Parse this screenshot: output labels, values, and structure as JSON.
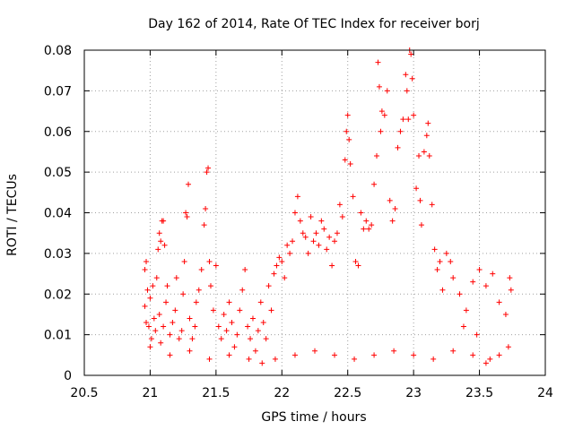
{
  "chart_data": {
    "type": "scatter",
    "title": "Day 162 of 2014, Rate Of TEC Index for receiver borj",
    "xlabel": "GPS time / hours",
    "ylabel": "ROTI / TECUs",
    "xlim": [
      20.5,
      24
    ],
    "ylim": [
      0,
      0.08
    ],
    "x_ticks": [
      20.5,
      21,
      21.5,
      22,
      22.5,
      23,
      23.5,
      24
    ],
    "y_ticks": [
      0,
      0.01,
      0.02,
      0.03,
      0.04,
      0.05,
      0.06,
      0.07,
      0.08
    ],
    "x_tick_labels": [
      "20.5",
      "21",
      "21.5",
      "22",
      "22.5",
      "23",
      "23.5",
      "24"
    ],
    "y_tick_labels": [
      "0",
      "0.01",
      "0.02",
      "0.03",
      "0.04",
      "0.05",
      "0.06",
      "0.07",
      "0.08"
    ],
    "grid": true,
    "marker": "+",
    "color": "#ff0000",
    "series": [
      {
        "name": "ROTI",
        "points": [
          [
            20.96,
            0.026
          ],
          [
            20.97,
            0.028
          ],
          [
            20.96,
            0.017
          ],
          [
            20.97,
            0.013
          ],
          [
            20.98,
            0.021
          ],
          [
            20.99,
            0.012
          ],
          [
            21.0,
            0.019
          ],
          [
            21.01,
            0.009
          ],
          [
            21.02,
            0.022
          ],
          [
            21.03,
            0.014
          ],
          [
            21.04,
            0.011
          ],
          [
            21.05,
            0.024
          ],
          [
            21.06,
            0.031
          ],
          [
            21.07,
            0.035
          ],
          [
            21.08,
            0.033
          ],
          [
            21.09,
            0.038
          ],
          [
            21.1,
            0.038
          ],
          [
            21.11,
            0.032
          ],
          [
            21.07,
            0.015
          ],
          [
            21.08,
            0.008
          ],
          [
            21.1,
            0.012
          ],
          [
            21.12,
            0.018
          ],
          [
            21.13,
            0.022
          ],
          [
            21.15,
            0.01
          ],
          [
            21.17,
            0.013
          ],
          [
            21.19,
            0.016
          ],
          [
            21.2,
            0.024
          ],
          [
            21.22,
            0.009
          ],
          [
            21.24,
            0.011
          ],
          [
            21.25,
            0.02
          ],
          [
            21.26,
            0.028
          ],
          [
            21.27,
            0.04
          ],
          [
            21.28,
            0.039
          ],
          [
            21.29,
            0.047
          ],
          [
            21.3,
            0.014
          ],
          [
            21.32,
            0.009
          ],
          [
            21.34,
            0.012
          ],
          [
            21.35,
            0.018
          ],
          [
            21.37,
            0.021
          ],
          [
            21.39,
            0.026
          ],
          [
            21.41,
            0.037
          ],
          [
            21.42,
            0.041
          ],
          [
            21.43,
            0.05
          ],
          [
            21.44,
            0.051
          ],
          [
            21.45,
            0.028
          ],
          [
            21.46,
            0.022
          ],
          [
            21.48,
            0.016
          ],
          [
            21.5,
            0.027
          ],
          [
            21.52,
            0.012
          ],
          [
            21.54,
            0.009
          ],
          [
            21.56,
            0.015
          ],
          [
            21.58,
            0.011
          ],
          [
            21.6,
            0.018
          ],
          [
            21.62,
            0.013
          ],
          [
            21.64,
            0.007
          ],
          [
            21.66,
            0.01
          ],
          [
            21.68,
            0.016
          ],
          [
            21.7,
            0.021
          ],
          [
            21.72,
            0.026
          ],
          [
            21.74,
            0.012
          ],
          [
            21.76,
            0.009
          ],
          [
            21.78,
            0.014
          ],
          [
            21.8,
            0.006
          ],
          [
            21.82,
            0.011
          ],
          [
            21.84,
            0.018
          ],
          [
            21.86,
            0.013
          ],
          [
            21.88,
            0.009
          ],
          [
            21.9,
            0.022
          ],
          [
            21.92,
            0.016
          ],
          [
            21.94,
            0.025
          ],
          [
            21.96,
            0.027
          ],
          [
            21.98,
            0.029
          ],
          [
            22.0,
            0.028
          ],
          [
            22.02,
            0.024
          ],
          [
            22.04,
            0.032
          ],
          [
            22.06,
            0.03
          ],
          [
            22.08,
            0.033
          ],
          [
            22.1,
            0.04
          ],
          [
            22.12,
            0.044
          ],
          [
            22.14,
            0.038
          ],
          [
            22.16,
            0.035
          ],
          [
            22.18,
            0.034
          ],
          [
            22.2,
            0.03
          ],
          [
            22.22,
            0.039
          ],
          [
            22.24,
            0.033
          ],
          [
            22.26,
            0.035
          ],
          [
            22.28,
            0.032
          ],
          [
            22.3,
            0.038
          ],
          [
            22.32,
            0.036
          ],
          [
            22.34,
            0.031
          ],
          [
            22.36,
            0.034
          ],
          [
            22.38,
            0.027
          ],
          [
            22.4,
            0.033
          ],
          [
            22.42,
            0.035
          ],
          [
            22.44,
            0.042
          ],
          [
            22.46,
            0.039
          ],
          [
            22.48,
            0.053
          ],
          [
            22.49,
            0.06
          ],
          [
            22.5,
            0.064
          ],
          [
            22.51,
            0.058
          ],
          [
            22.52,
            0.052
          ],
          [
            22.54,
            0.044
          ],
          [
            22.56,
            0.028
          ],
          [
            22.58,
            0.027
          ],
          [
            22.6,
            0.04
          ],
          [
            22.62,
            0.036
          ],
          [
            22.64,
            0.038
          ],
          [
            22.66,
            0.036
          ],
          [
            22.68,
            0.037
          ],
          [
            22.7,
            0.047
          ],
          [
            22.72,
            0.054
          ],
          [
            22.73,
            0.077
          ],
          [
            22.74,
            0.071
          ],
          [
            22.75,
            0.06
          ],
          [
            22.76,
            0.065
          ],
          [
            22.78,
            0.064
          ],
          [
            22.8,
            0.07
          ],
          [
            22.82,
            0.043
          ],
          [
            22.84,
            0.038
          ],
          [
            22.86,
            0.041
          ],
          [
            22.88,
            0.056
          ],
          [
            22.9,
            0.06
          ],
          [
            22.92,
            0.063
          ],
          [
            22.94,
            0.074
          ],
          [
            22.95,
            0.07
          ],
          [
            22.96,
            0.063
          ],
          [
            22.97,
            0.08
          ],
          [
            22.98,
            0.079
          ],
          [
            22.99,
            0.073
          ],
          [
            23.0,
            0.064
          ],
          [
            23.02,
            0.046
          ],
          [
            23.04,
            0.054
          ],
          [
            23.05,
            0.043
          ],
          [
            23.06,
            0.037
          ],
          [
            23.08,
            0.055
          ],
          [
            23.1,
            0.059
          ],
          [
            23.11,
            0.062
          ],
          [
            23.12,
            0.054
          ],
          [
            23.14,
            0.042
          ],
          [
            23.16,
            0.031
          ],
          [
            23.18,
            0.026
          ],
          [
            23.2,
            0.028
          ],
          [
            23.22,
            0.021
          ],
          [
            23.25,
            0.03
          ],
          [
            23.28,
            0.028
          ],
          [
            23.3,
            0.024
          ],
          [
            23.35,
            0.02
          ],
          [
            23.4,
            0.016
          ],
          [
            23.45,
            0.023
          ],
          [
            23.5,
            0.026
          ],
          [
            23.55,
            0.022
          ],
          [
            23.6,
            0.025
          ],
          [
            23.65,
            0.018
          ],
          [
            23.7,
            0.015
          ],
          [
            23.73,
            0.024
          ],
          [
            23.74,
            0.021
          ],
          [
            21.0,
            0.007
          ],
          [
            21.15,
            0.005
          ],
          [
            21.3,
            0.006
          ],
          [
            21.45,
            0.004
          ],
          [
            21.6,
            0.005
          ],
          [
            21.75,
            0.004
          ],
          [
            21.85,
            0.003
          ],
          [
            21.95,
            0.004
          ],
          [
            22.1,
            0.005
          ],
          [
            22.25,
            0.006
          ],
          [
            22.4,
            0.005
          ],
          [
            22.55,
            0.004
          ],
          [
            22.7,
            0.005
          ],
          [
            22.85,
            0.006
          ],
          [
            23.0,
            0.005
          ],
          [
            23.15,
            0.004
          ],
          [
            23.3,
            0.006
          ],
          [
            23.45,
            0.005
          ],
          [
            23.55,
            0.003
          ],
          [
            23.65,
            0.005
          ],
          [
            23.72,
            0.007
          ],
          [
            23.58,
            0.004
          ],
          [
            23.48,
            0.01
          ],
          [
            23.38,
            0.012
          ]
        ]
      }
    ]
  }
}
